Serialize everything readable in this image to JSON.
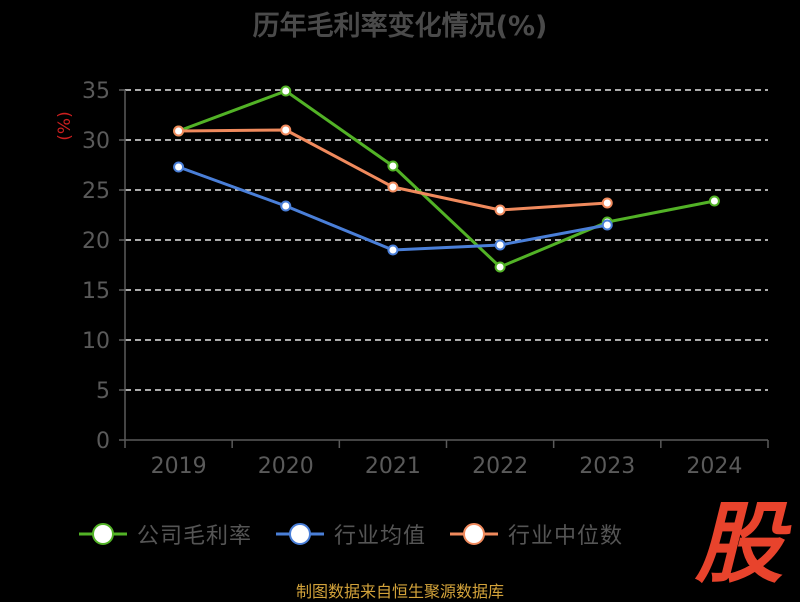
{
  "title": "历年毛利率变化情况(%)",
  "source_note": "制图数据来自恒生聚源数据库",
  "logo_text": "股",
  "chart_data": {
    "type": "line",
    "title": "历年毛利率变化情况(%)",
    "xlabel": "",
    "ylabel": "(%)",
    "categories": [
      "2019",
      "2020",
      "2021",
      "2022",
      "2023",
      "2024"
    ],
    "ylim": [
      0,
      35
    ],
    "yticks": [
      0,
      5,
      10,
      15,
      20,
      25,
      30,
      35
    ],
    "grid": true,
    "legend_position": "bottom",
    "series": [
      {
        "name": "公司毛利率",
        "color": "#52b226",
        "values": [
          30.9,
          34.9,
          27.4,
          17.3,
          21.8,
          23.9
        ]
      },
      {
        "name": "行业均值",
        "color": "#4a7fd8",
        "values": [
          27.3,
          23.4,
          19.0,
          19.5,
          21.5,
          null
        ]
      },
      {
        "name": "行业中位数",
        "color": "#f08a5d",
        "values": [
          30.9,
          31.0,
          25.3,
          23.0,
          23.7,
          null
        ]
      }
    ]
  }
}
